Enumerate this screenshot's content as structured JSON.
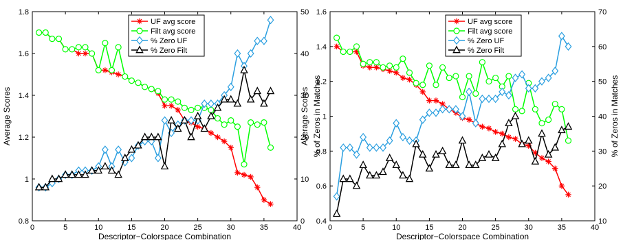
{
  "chart_data": [
    {
      "type": "line",
      "xlabel": "Descriptor−Colorspace Combination",
      "ylabel": "Average Scores",
      "y2label": "% of Zeros in Matches",
      "xlim": [
        0,
        40
      ],
      "ylim": [
        0.8,
        1.8
      ],
      "y2lim": [
        0,
        50
      ],
      "xticks": [
        0,
        5,
        10,
        15,
        20,
        25,
        30,
        35,
        40
      ],
      "yticks": [
        "0.8",
        "1",
        "1.2",
        "1.4",
        "1.6",
        "1.8"
      ],
      "y2ticks": [
        "0",
        "10",
        "20",
        "30",
        "40",
        "50"
      ],
      "grid": false,
      "legend_position": "top-center",
      "x": [
        1,
        2,
        3,
        4,
        5,
        6,
        7,
        8,
        9,
        10,
        11,
        12,
        13,
        14,
        15,
        16,
        17,
        18,
        19,
        20,
        21,
        22,
        23,
        24,
        25,
        26,
        27,
        28,
        29,
        30,
        31,
        32,
        33,
        34,
        35,
        36
      ],
      "series": [
        {
          "name": "UF avg score",
          "axis": "left",
          "color": "#ff0000",
          "marker": "asterisk",
          "values": [
            1.7,
            1.7,
            1.67,
            1.67,
            1.62,
            1.62,
            1.6,
            1.6,
            1.6,
            1.52,
            1.52,
            1.51,
            1.5,
            1.49,
            1.47,
            1.46,
            1.44,
            1.43,
            1.41,
            1.35,
            1.35,
            1.33,
            1.28,
            1.27,
            1.25,
            1.24,
            1.22,
            1.2,
            1.18,
            1.15,
            1.03,
            1.02,
            1.01,
            0.96,
            0.9,
            0.88
          ]
        },
        {
          "name": "Filt avg score",
          "axis": "left",
          "color": "#00ff00",
          "marker": "circle",
          "values": [
            1.7,
            1.7,
            1.67,
            1.67,
            1.62,
            1.62,
            1.63,
            1.63,
            1.6,
            1.52,
            1.65,
            1.52,
            1.63,
            1.49,
            1.47,
            1.46,
            1.44,
            1.43,
            1.42,
            1.38,
            1.38,
            1.37,
            1.34,
            1.33,
            1.34,
            1.34,
            1.33,
            1.29,
            1.26,
            1.28,
            1.25,
            1.07,
            1.27,
            1.26,
            1.27,
            1.15
          ]
        },
        {
          "name": "% Zero UF",
          "axis": "right",
          "color": "#2b9fe0",
          "marker": "diamond",
          "values": [
            8,
            8,
            9,
            10,
            11,
            11,
            12,
            12,
            12,
            13,
            17,
            13,
            17,
            14,
            15,
            18,
            19,
            19,
            15,
            24,
            21,
            23,
            24,
            24,
            24,
            28,
            28,
            28,
            30,
            32,
            40,
            37,
            40,
            43,
            43,
            48
          ]
        },
        {
          "name": "% Zero Filt",
          "axis": "right",
          "color": "#000000",
          "marker": "triangle",
          "values": [
            8,
            8,
            10,
            10,
            11,
            11,
            11,
            11,
            12,
            12,
            13,
            12,
            11,
            15,
            17,
            18,
            20,
            20,
            20,
            13,
            24,
            22,
            24,
            20,
            25,
            22,
            25,
            27,
            29,
            29,
            28,
            36,
            29,
            31,
            28,
            31
          ]
        }
      ]
    },
    {
      "type": "line",
      "xlabel": "Descriptor−Colorspace Combination",
      "ylabel": "Average Scores",
      "y2label": "% of Zeros in Matches",
      "xlim": [
        0,
        40
      ],
      "ylim": [
        0.4,
        1.6
      ],
      "y2lim": [
        10,
        70
      ],
      "xticks": [
        0,
        5,
        10,
        15,
        20,
        25,
        30,
        35,
        40
      ],
      "yticks": [
        "0.4",
        "0.6",
        "0.8",
        "1",
        "1.2",
        "1.4",
        "1.6"
      ],
      "y2ticks": [
        "10",
        "20",
        "30",
        "40",
        "50",
        "60",
        "70"
      ],
      "grid": false,
      "legend_position": "top-center",
      "x": [
        1,
        2,
        3,
        4,
        5,
        6,
        7,
        8,
        9,
        10,
        11,
        12,
        13,
        14,
        15,
        16,
        17,
        18,
        19,
        20,
        21,
        22,
        23,
        24,
        25,
        26,
        27,
        28,
        29,
        30,
        31,
        32,
        33,
        34,
        35,
        36
      ],
      "series": [
        {
          "name": "UF avg score",
          "axis": "left",
          "color": "#ff0000",
          "marker": "asterisk",
          "values": [
            1.4,
            1.37,
            1.37,
            1.37,
            1.29,
            1.28,
            1.28,
            1.27,
            1.26,
            1.25,
            1.22,
            1.21,
            1.18,
            1.14,
            1.09,
            1.09,
            1.07,
            1.04,
            1.02,
            0.99,
            0.98,
            0.96,
            0.94,
            0.93,
            0.91,
            0.9,
            0.88,
            0.87,
            0.84,
            0.83,
            0.79,
            0.76,
            0.74,
            0.7,
            0.6,
            0.55
          ]
        },
        {
          "name": "Filt avg score",
          "axis": "left",
          "color": "#00ff00",
          "marker": "circle",
          "values": [
            1.45,
            1.37,
            1.37,
            1.4,
            1.3,
            1.31,
            1.31,
            1.28,
            1.29,
            1.28,
            1.33,
            1.25,
            1.19,
            1.18,
            1.29,
            1.18,
            1.28,
            1.22,
            1.23,
            1.11,
            1.23,
            1.13,
            1.31,
            1.2,
            1.22,
            1.17,
            1.23,
            1.04,
            1.03,
            1.19,
            1.04,
            0.96,
            0.98,
            1.07,
            1.04,
            0.86
          ]
        },
        {
          "name": "% Zero UF",
          "axis": "right",
          "color": "#2b9fe0",
          "marker": "diamond",
          "values": [
            17,
            31,
            31,
            29,
            34,
            31,
            31,
            31,
            33,
            38,
            34,
            33,
            33,
            39,
            41,
            41,
            42,
            42,
            42,
            40,
            47,
            38,
            45,
            45,
            45,
            47,
            46,
            51,
            52,
            48,
            48,
            50,
            51,
            53,
            63,
            60
          ]
        },
        {
          "name": "% Zero Filt",
          "axis": "right",
          "color": "#000000",
          "marker": "triangle",
          "values": [
            12,
            22,
            22,
            20,
            26,
            23,
            23,
            24,
            28,
            26,
            23,
            22,
            32,
            29,
            25,
            29,
            30,
            26,
            26,
            33,
            26,
            26,
            28,
            29,
            28,
            32,
            38,
            40,
            32,
            33,
            27,
            35,
            29,
            31,
            36,
            37
          ]
        }
      ]
    }
  ]
}
